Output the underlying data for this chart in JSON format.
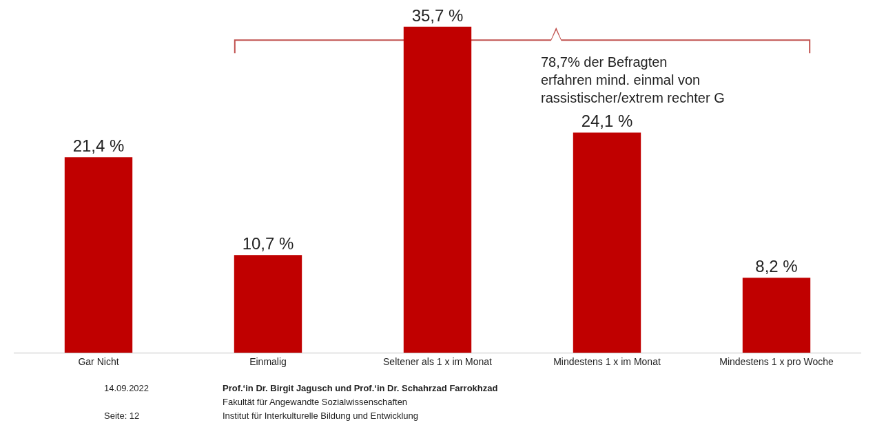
{
  "chart_data": {
    "type": "bar",
    "categories": [
      "Gar Nicht",
      "Einmalig",
      "Seltener als 1 x im Monat",
      "Mindestens 1 x im Monat",
      "Mindestens 1 x pro Woche"
    ],
    "values": [
      21.4,
      10.7,
      35.7,
      24.1,
      8.2
    ],
    "value_labels": [
      "21,4 %",
      "10,7 %",
      "35,7 %",
      "24,1 %",
      "8,2 %"
    ],
    "color": "#c00000",
    "tick_labels": "x",
    "grid": false,
    "annotations": [
      "78,7% der Befragten\nerfahren mind. einmal von\nrassistischer/extrem rechter G",
      "14.09.2022",
      "Seite: 12",
      "Prof.‘in Dr. Birgit Jagusch und Prof.‘in Dr. Schahrzad Farrokhzad",
      "Fakultät für Angewandte Sozialwissenschaften",
      "Institut für Interkulturelle Bildung und Entwicklung"
    ]
  }
}
